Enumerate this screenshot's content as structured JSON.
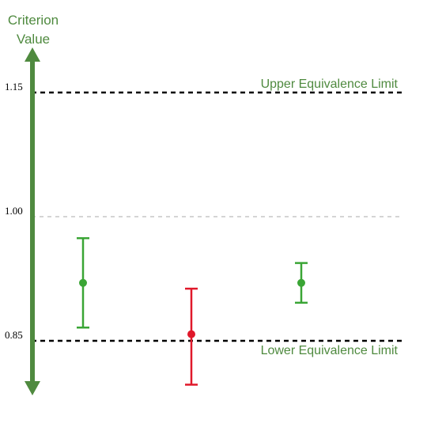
{
  "chart_data": {
    "type": "errorbar",
    "ylabel_lines": [
      "Criterion",
      "Value"
    ],
    "y_ticks": [
      {
        "value": 1.15,
        "label": "1.15"
      },
      {
        "value": 1.0,
        "label": "1.00"
      },
      {
        "value": 0.85,
        "label": "0.85"
      }
    ],
    "reference_lines": [
      {
        "value": 1.15,
        "label": "Upper Equivalence Limit",
        "style": "dashed-bold"
      },
      {
        "value": 1.0,
        "label": "",
        "style": "dashed-light"
      },
      {
        "value": 0.85,
        "label": "Lower Equivalence Limit",
        "style": "dashed-bold"
      }
    ],
    "points": [
      {
        "estimate": 0.92,
        "lower": 0.866,
        "upper": 0.974,
        "color": "#3aa535"
      },
      {
        "estimate": 0.858,
        "lower": 0.797,
        "upper": 0.913,
        "color": "#e0182a"
      },
      {
        "estimate": 0.92,
        "lower": 0.896,
        "upper": 0.944,
        "color": "#3aa535"
      }
    ],
    "colors": {
      "axis": "#4f8a3f",
      "label": "#4f8a3f",
      "limit_line": "#000000",
      "ref_line": "#aaaaaa"
    }
  }
}
